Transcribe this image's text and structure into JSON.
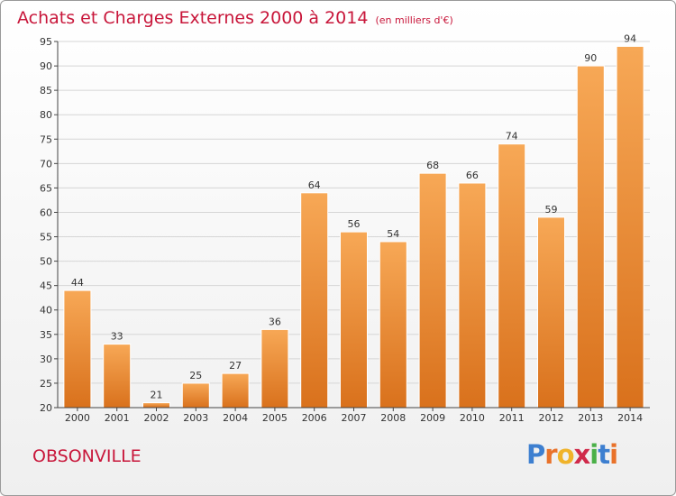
{
  "title": "Achats et Charges Externes 2000 à 2014",
  "unit_note": "(en milliers d'€)",
  "place_name": "OBSONVILLE",
  "brand": {
    "letters": [
      {
        "char": "P",
        "color": "#3d7fd0"
      },
      {
        "char": "r",
        "color": "#e9722a"
      },
      {
        "char": "o",
        "color": "#f0b32a"
      },
      {
        "char": "x",
        "color": "#d02a4a"
      },
      {
        "char": "i",
        "color": "#4ab048"
      },
      {
        "char": "t",
        "color": "#3d7fd0"
      },
      {
        "char": "i",
        "color": "#e9722a"
      }
    ]
  },
  "colors": {
    "bar_top": "#f7a856",
    "bar_bottom": "#d9711c",
    "grid": "#d6d6d6",
    "axis": "#444444",
    "text": "#333333",
    "title": "#c8163a"
  },
  "chart_data": {
    "type": "bar",
    "categories": [
      "2000",
      "2001",
      "2002",
      "2003",
      "2004",
      "2005",
      "2006",
      "2007",
      "2008",
      "2009",
      "2010",
      "2011",
      "2012",
      "2013",
      "2014"
    ],
    "values": [
      44,
      33,
      21,
      25,
      27,
      36,
      64,
      56,
      54,
      68,
      66,
      74,
      59,
      90,
      94
    ],
    "ylim": [
      20,
      95
    ],
    "yticks": [
      20,
      25,
      30,
      35,
      40,
      45,
      50,
      55,
      60,
      65,
      70,
      75,
      80,
      85,
      90,
      95
    ],
    "grid": true,
    "data_labels": true
  }
}
